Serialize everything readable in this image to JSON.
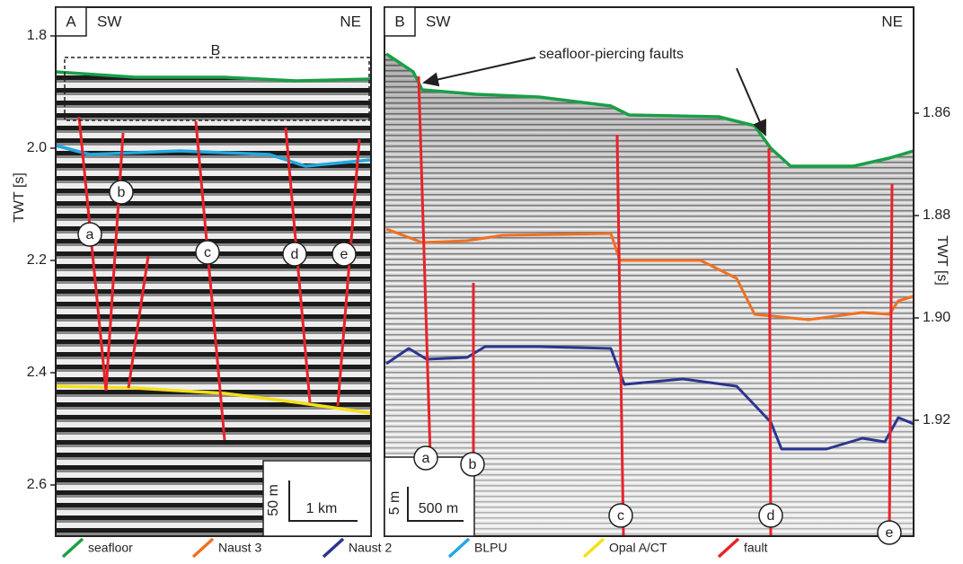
{
  "panel_a": {
    "label": "A",
    "left": "SW",
    "right": "NE",
    "box_label": "B",
    "y_axis_label": "TWT [s]",
    "yticks": [
      "1.8",
      "2.0",
      "2.2",
      "2.4",
      "2.6"
    ],
    "fault_labels": [
      "a",
      "b",
      "c",
      "d",
      "e"
    ],
    "scale": {
      "vertical": "50 m",
      "horizontal": "1 km"
    }
  },
  "panel_b": {
    "label": "B",
    "left": "SW",
    "right": "NE",
    "annotation": "seafloor-piercing faults",
    "y_axis_label": "TWT [s]",
    "yticks": [
      "1.86",
      "1.88",
      "1.90",
      "1.92"
    ],
    "fault_labels": [
      "a",
      "b",
      "c",
      "d",
      "e"
    ],
    "scale": {
      "vertical": "5 m",
      "horizontal": "500 m"
    }
  },
  "legend": [
    {
      "label": "seafloor",
      "color": "#1a9f47"
    },
    {
      "label": "Naust 3",
      "color": "#f07022"
    },
    {
      "label": "Naust 2",
      "color": "#2a3590"
    },
    {
      "label": "BLPU",
      "color": "#22a8e0"
    },
    {
      "label": "Opal A/CT",
      "color": "#f4e01c"
    },
    {
      "label": "fault",
      "color": "#e8232a"
    }
  ]
}
